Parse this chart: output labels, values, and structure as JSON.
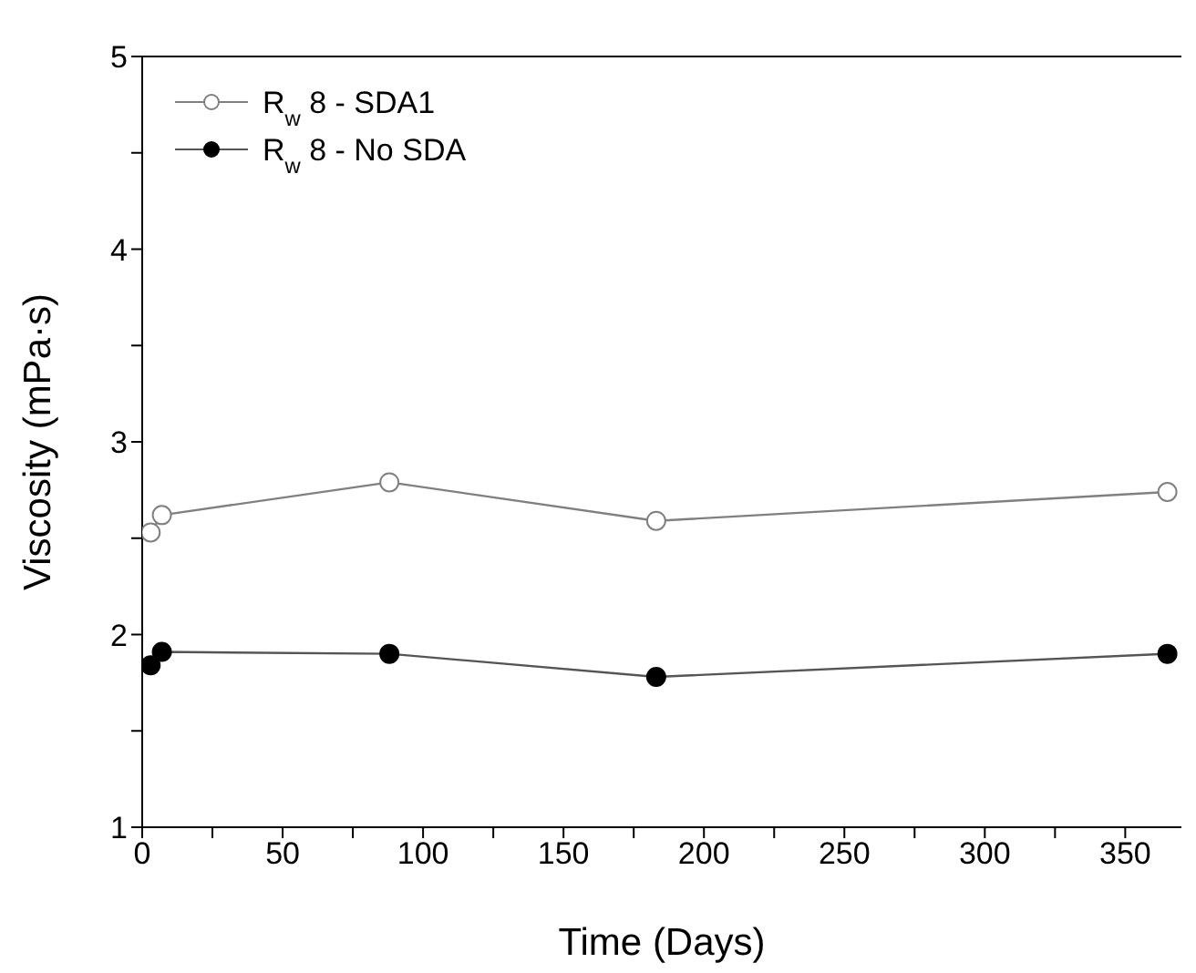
{
  "chart_data": {
    "type": "line",
    "xlabel": "Time (Days)",
    "ylabel": "Viscosity (mPa·s)",
    "xlim": [
      0,
      370
    ],
    "xticks": [
      0,
      {
        "value": 25,
        "label": null
      },
      50,
      {
        "value": 75,
        "label": null
      },
      100,
      {
        "value": 125,
        "label": null
      },
      150,
      {
        "value": 175,
        "label": null
      },
      200,
      {
        "value": 225,
        "label": null
      },
      250,
      {
        "value": 275,
        "label": null
      },
      300,
      {
        "value": 325,
        "label": null
      },
      350
    ],
    "ylim": [
      1,
      5
    ],
    "yticks": [
      1,
      {
        "value": 1.5,
        "label": null
      },
      2,
      {
        "value": 2.5,
        "label": null
      },
      3,
      {
        "value": 3.5,
        "label": null
      },
      4,
      {
        "value": 4.5,
        "label": null
      },
      5
    ],
    "x": [
      3,
      7,
      88,
      183,
      365
    ],
    "series": [
      {
        "name": "R$_{w}$ 8 - SDA1",
        "color": "#808080",
        "values": [
          2.53,
          2.62,
          2.79,
          2.59,
          2.74
        ]
      },
      {
        "name": "R$_{w}$ 8 - No SDA",
        "color": "#000000",
        "values": [
          1.84,
          1.91,
          1.9,
          1.78,
          1.9
        ]
      }
    ],
    "legend": "top left",
    "grid": false,
    "marker": "circle",
    "line_style": "solid"
  }
}
